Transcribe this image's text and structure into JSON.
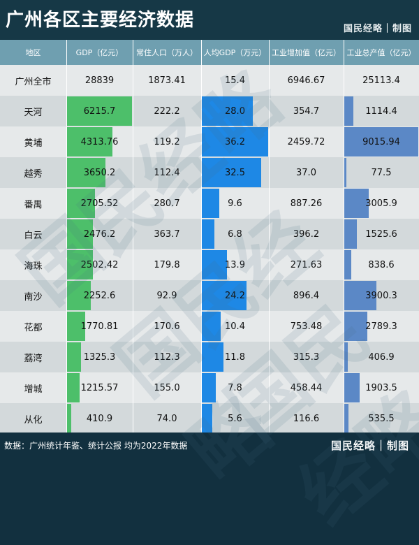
{
  "title": "广州各区主要经济数据",
  "brand": "国民经略｜制图",
  "source": "数据：广州统计年鉴、统计公报 均为2022年数据",
  "watermark": "国民经略",
  "colors": {
    "gdp_bar": "#4dbf6a",
    "per_capita_bar": "#1e88e5",
    "industry_bar": "#5b88c6",
    "header_bg": "#6f9fb0"
  },
  "chart_data": {
    "type": "table",
    "columns": [
      "地区",
      "GDP（亿元）",
      "常住人口（万人）",
      "人均GDP（万元）",
      "工业增加值（亿元）",
      "工业总产值（亿元）"
    ],
    "rows": [
      [
        "广州全市",
        "28839",
        "1873.41",
        "15.4",
        "6946.67",
        "25113.4"
      ],
      [
        "天河",
        "6215.7",
        "222.2",
        "28.0",
        "354.7",
        "1114.4"
      ],
      [
        "黄埔",
        "4313.76",
        "119.2",
        "36.2",
        "2459.72",
        "9015.94"
      ],
      [
        "越秀",
        "3650.2",
        "112.4",
        "32.5",
        "37.0",
        "77.5"
      ],
      [
        "番禺",
        "2705.52",
        "280.7",
        "9.6",
        "887.26",
        "3005.9"
      ],
      [
        "白云",
        "2476.2",
        "363.7",
        "6.8",
        "396.2",
        "1525.6"
      ],
      [
        "海珠",
        "2502.42",
        "179.8",
        "13.9",
        "271.63",
        "838.6"
      ],
      [
        "南沙",
        "2252.6",
        "92.9",
        "24.2",
        "896.4",
        "3900.3"
      ],
      [
        "花都",
        "1770.81",
        "170.6",
        "10.4",
        "753.48",
        "2789.3"
      ],
      [
        "荔湾",
        "1325.3",
        "112.3",
        "11.8",
        "315.3",
        "406.9"
      ],
      [
        "增城",
        "1215.57",
        "155.0",
        "7.8",
        "458.44",
        "1903.5"
      ],
      [
        "从化",
        "410.9",
        "74.0",
        "5.6",
        "116.6",
        "535.5"
      ]
    ],
    "bar_columns": [
      1,
      3,
      5
    ]
  }
}
